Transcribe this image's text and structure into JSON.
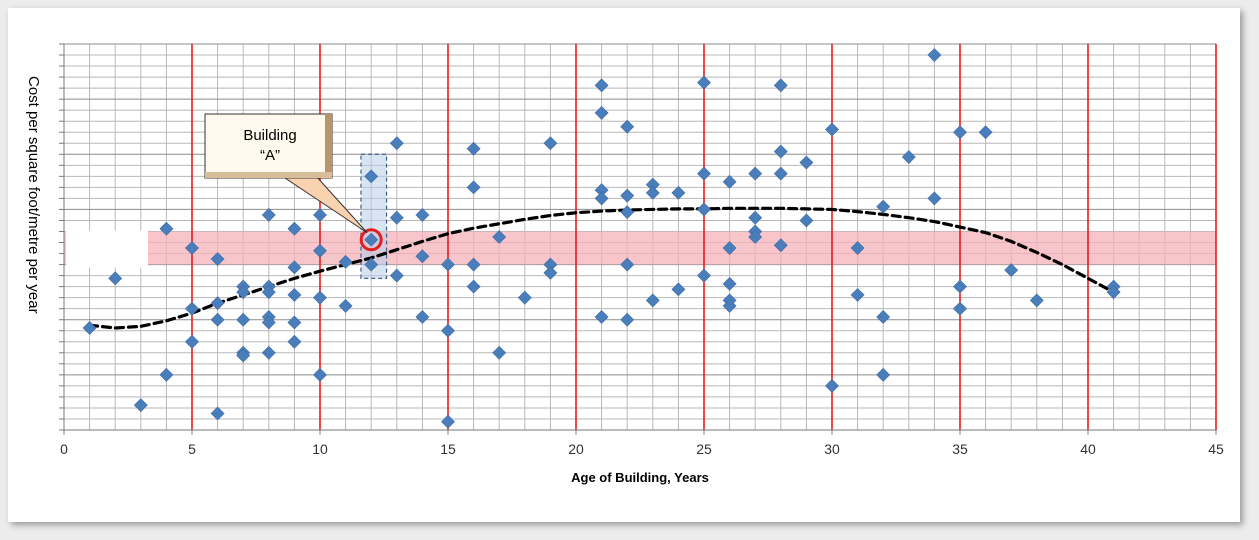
{
  "chart_data": {
    "type": "scatter",
    "xlabel": "Age of Building, Years",
    "ylabel": "Cost per square foot/metre per year",
    "x_ticks": [
      "0",
      "5",
      "10",
      "15",
      "20",
      "25",
      "30",
      "35",
      "40",
      "45"
    ],
    "xlim": [
      0,
      45
    ],
    "ylim": [
      0,
      7
    ],
    "grid": true,
    "y_tick_labels_shown": false,
    "callout": {
      "label_line1": "Building",
      "label_line2": "“A”",
      "point": [
        12,
        3.45
      ]
    },
    "highlight_band": {
      "y_range": [
        3,
        3.6
      ]
    },
    "highlight_column": {
      "x_range": [
        11.6,
        12.6
      ],
      "y_range": [
        2.75,
        5.0
      ]
    },
    "colors": {
      "points": "#4a7ebb",
      "major_gridlines": "#e0201f",
      "minor_gridlines": "#b8b8b8",
      "band": "#f6b2b8",
      "trend": "#000000",
      "callout_ring": "#e02020"
    },
    "points": [
      [
        1,
        1.85
      ],
      [
        2,
        2.75
      ],
      [
        3,
        0.45
      ],
      [
        4,
        3.65
      ],
      [
        4,
        1.0
      ],
      [
        5,
        3.3
      ],
      [
        5,
        2.2
      ],
      [
        5,
        1.6
      ],
      [
        6,
        3.1
      ],
      [
        6,
        2.3
      ],
      [
        6,
        2.0
      ],
      [
        6,
        0.3
      ],
      [
        7,
        2.6
      ],
      [
        7,
        2.5
      ],
      [
        7,
        2.0
      ],
      [
        7,
        1.4
      ],
      [
        7,
        1.35
      ],
      [
        8,
        3.9
      ],
      [
        8,
        2.6
      ],
      [
        8,
        2.5
      ],
      [
        8,
        2.05
      ],
      [
        8,
        1.95
      ],
      [
        8,
        1.4
      ],
      [
        9,
        3.65
      ],
      [
        9,
        2.95
      ],
      [
        9,
        2.45
      ],
      [
        9,
        1.95
      ],
      [
        9,
        1.6
      ],
      [
        10,
        3.9
      ],
      [
        10,
        3.25
      ],
      [
        10,
        2.4
      ],
      [
        10,
        1.0
      ],
      [
        11,
        3.05
      ],
      [
        11,
        2.25
      ],
      [
        12,
        4.6
      ],
      [
        12,
        3.45
      ],
      [
        12,
        3.0
      ],
      [
        13,
        5.2
      ],
      [
        13,
        3.85
      ],
      [
        13,
        2.8
      ],
      [
        14,
        3.9
      ],
      [
        14,
        3.15
      ],
      [
        14,
        2.05
      ],
      [
        15,
        3.0
      ],
      [
        15,
        1.8
      ],
      [
        15,
        0.15
      ],
      [
        16,
        5.1
      ],
      [
        16,
        4.4
      ],
      [
        16,
        3.0
      ],
      [
        16,
        2.6
      ],
      [
        17,
        3.5
      ],
      [
        17,
        1.4
      ],
      [
        18,
        2.4
      ],
      [
        19,
        5.2
      ],
      [
        19,
        3.0
      ],
      [
        19,
        2.85
      ],
      [
        21,
        6.25
      ],
      [
        21,
        5.75
      ],
      [
        21,
        4.35
      ],
      [
        21,
        4.2
      ],
      [
        21,
        2.05
      ],
      [
        22,
        5.5
      ],
      [
        22,
        4.25
      ],
      [
        22,
        3.95
      ],
      [
        22,
        3.0
      ],
      [
        22,
        2.0
      ],
      [
        23,
        4.45
      ],
      [
        23,
        4.3
      ],
      [
        23,
        2.35
      ],
      [
        24,
        4.3
      ],
      [
        24,
        2.55
      ],
      [
        25,
        6.3
      ],
      [
        25,
        4.65
      ],
      [
        25,
        4.0
      ],
      [
        25,
        2.8
      ],
      [
        26,
        4.5
      ],
      [
        26,
        3.3
      ],
      [
        26,
        2.65
      ],
      [
        26,
        2.35
      ],
      [
        26,
        2.25
      ],
      [
        27,
        4.65
      ],
      [
        27,
        3.85
      ],
      [
        27,
        3.6
      ],
      [
        27,
        3.5
      ],
      [
        28,
        6.25
      ],
      [
        28,
        5.05
      ],
      [
        28,
        4.65
      ],
      [
        28,
        3.35
      ],
      [
        29,
        4.85
      ],
      [
        29,
        3.8
      ],
      [
        30,
        5.45
      ],
      [
        30,
        0.8
      ],
      [
        31,
        3.3
      ],
      [
        31,
        2.45
      ],
      [
        32,
        4.05
      ],
      [
        32,
        2.05
      ],
      [
        32,
        1.0
      ],
      [
        33,
        4.95
      ],
      [
        34,
        6.8
      ],
      [
        34,
        4.2
      ],
      [
        35,
        5.4
      ],
      [
        35,
        2.6
      ],
      [
        35,
        2.2
      ],
      [
        36,
        5.4
      ],
      [
        37,
        2.9
      ],
      [
        38,
        2.35
      ],
      [
        41,
        2.6
      ],
      [
        41,
        2.5
      ]
    ],
    "trend": [
      [
        1,
        1.9
      ],
      [
        2,
        1.85
      ],
      [
        3,
        1.88
      ],
      [
        4,
        1.98
      ],
      [
        5,
        2.12
      ],
      [
        6,
        2.3
      ],
      [
        7,
        2.45
      ],
      [
        8,
        2.6
      ],
      [
        9,
        2.75
      ],
      [
        10,
        2.88
      ],
      [
        11,
        3.0
      ],
      [
        12,
        3.12
      ],
      [
        13,
        3.27
      ],
      [
        14,
        3.42
      ],
      [
        15,
        3.56
      ],
      [
        16,
        3.66
      ],
      [
        17,
        3.74
      ],
      [
        18,
        3.82
      ],
      [
        19,
        3.89
      ],
      [
        20,
        3.94
      ],
      [
        21,
        3.97
      ],
      [
        22,
        3.99
      ],
      [
        23,
        4.0
      ],
      [
        24,
        4.01
      ],
      [
        25,
        4.01
      ],
      [
        26,
        4.02
      ],
      [
        27,
        4.02
      ],
      [
        28,
        4.02
      ],
      [
        29,
        4.01
      ],
      [
        30,
        4.0
      ],
      [
        31,
        3.96
      ],
      [
        32,
        3.91
      ],
      [
        33,
        3.85
      ],
      [
        34,
        3.78
      ],
      [
        35,
        3.68
      ],
      [
        36,
        3.58
      ],
      [
        37,
        3.42
      ],
      [
        38,
        3.22
      ],
      [
        39,
        3.0
      ],
      [
        40,
        2.75
      ],
      [
        41,
        2.5
      ]
    ]
  }
}
